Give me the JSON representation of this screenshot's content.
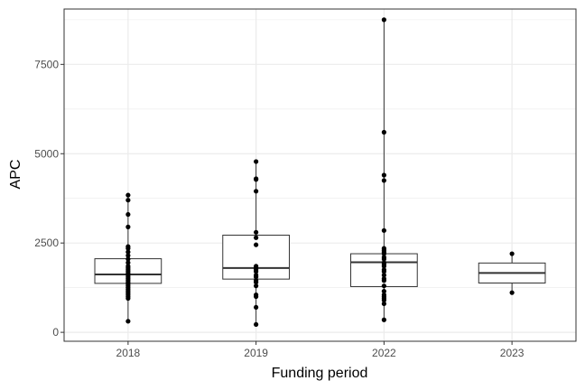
{
  "chart_data": {
    "type": "box",
    "xlabel": "Funding period",
    "ylabel": "APC",
    "categories": [
      "2018",
      "2019",
      "2022",
      "2023"
    ],
    "ylim": [
      -250,
      9050
    ],
    "yticks": [
      0,
      2500,
      5000,
      7500
    ],
    "ytick_labels": [
      "0",
      "2500",
      "5000",
      "7500"
    ],
    "grid": true,
    "legend": "none",
    "boxes": [
      {
        "category": "2018",
        "q1": 1370,
        "median": 1620,
        "q3": 2060,
        "whisker_low": 310,
        "whisker_high": 3840
      },
      {
        "category": "2019",
        "q1": 1490,
        "median": 1800,
        "q3": 2720,
        "whisker_low": 220,
        "whisker_high": 4780
      },
      {
        "category": "2022",
        "q1": 1280,
        "median": 1960,
        "q3": 2200,
        "whisker_low": 350,
        "whisker_high": 8750
      },
      {
        "category": "2023",
        "q1": 1380,
        "median": 1660,
        "q3": 1940,
        "whisker_low": 1110,
        "whisker_high": 2200
      }
    ],
    "points": [
      {
        "category": "2018",
        "values": [
          3840,
          3700,
          3300,
          2950,
          2400,
          2350,
          2250,
          2150,
          2050,
          1950,
          1850,
          1800,
          1750,
          1700,
          1650,
          1600,
          1550,
          1500,
          1450,
          1400,
          1350,
          1300,
          1250,
          1200,
          1150,
          1100,
          1050,
          1000,
          950,
          310
        ]
      },
      {
        "category": "2019",
        "values": [
          4780,
          4300,
          4280,
          3950,
          2800,
          2650,
          2450,
          1850,
          1800,
          1750,
          1700,
          1600,
          1550,
          1450,
          1400,
          1300,
          1050,
          1000,
          700,
          220
        ]
      },
      {
        "category": "2022",
        "values": [
          8750,
          5600,
          4400,
          4250,
          2850,
          2350,
          2300,
          2250,
          2200,
          2100,
          2050,
          1950,
          1900,
          1850,
          1750,
          1700,
          1600,
          1500,
          1450,
          1300,
          1150,
          1050,
          1000,
          950,
          900,
          800,
          350
        ]
      },
      {
        "category": "2023",
        "values": [
          2200,
          1110
        ]
      }
    ],
    "colors": {
      "background": "#ffffff",
      "grid": "#ebebeb",
      "panel_border": "#333333",
      "box_line": "#333333",
      "point": "#000000"
    }
  }
}
